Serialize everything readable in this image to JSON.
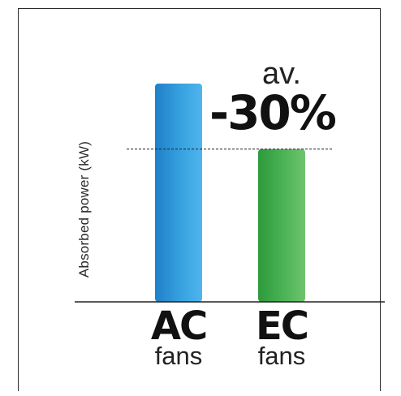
{
  "chart_data": {
    "type": "bar",
    "categories": [
      "AC",
      "EC"
    ],
    "category_sublabels": [
      "fans",
      "fans"
    ],
    "values": [
      1.0,
      0.7
    ],
    "ylabel": "Absorbed power (kW)",
    "ylim": [
      0,
      1.0
    ],
    "grid": false,
    "legend": "none",
    "annotation": {
      "prefix": "av.",
      "text": "-30%",
      "reference_line_value": 0.7
    },
    "colors": [
      "#2b93d8",
      "#3ea84a"
    ]
  }
}
